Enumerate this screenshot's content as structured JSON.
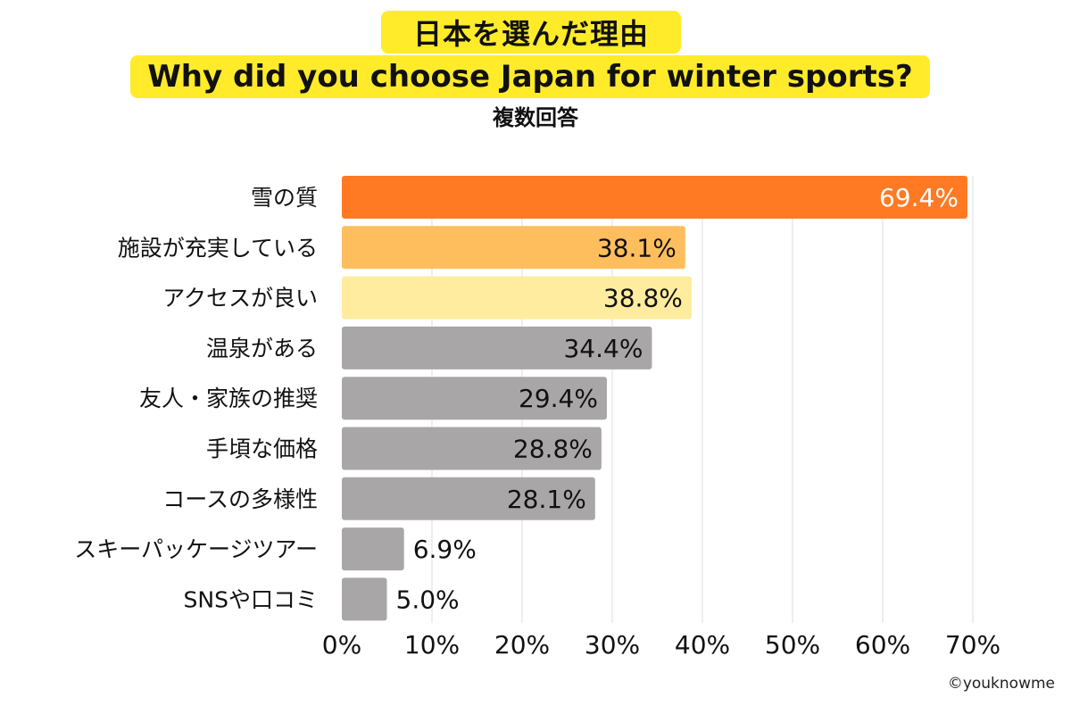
{
  "title": {
    "jp": "日本を選んだ理由",
    "en": "Why did you choose Japan for winter sports?",
    "highlight_color": "#ffeb2a"
  },
  "subtitle": "複数回答",
  "credit": "©youknowme",
  "chart_data": {
    "type": "bar",
    "orientation": "horizontal",
    "categories": [
      "雪の質",
      "施設が充実している",
      "アクセスが良い",
      "温泉がある",
      "友人・家族の推奨",
      "手頃な価格",
      "コースの多様性",
      "スキーパッケージツアー",
      "SNSや口コミ"
    ],
    "values": [
      69.4,
      38.1,
      38.8,
      34.4,
      29.4,
      28.8,
      28.1,
      6.9,
      5.0
    ],
    "value_labels": [
      "69.4%",
      "38.1%",
      "38.8%",
      "34.4%",
      "29.4%",
      "28.8%",
      "28.1%",
      "6.9%",
      "5.0%"
    ],
    "colors": [
      "#ff7a22",
      "#ffbe5e",
      "#ffec9e",
      "#a8a6a7",
      "#a8a6a7",
      "#a8a6a7",
      "#a8a6a7",
      "#a8a6a7",
      "#a8a6a7"
    ],
    "label_colors": [
      "#ffffff",
      "#111111",
      "#111111",
      "#111111",
      "#111111",
      "#111111",
      "#111111",
      "#111111",
      "#111111"
    ],
    "xlim": [
      0,
      70
    ],
    "xticks": [
      0,
      10,
      20,
      30,
      40,
      50,
      60,
      70
    ],
    "xtick_labels": [
      "0%",
      "10%",
      "20%",
      "30%",
      "40%",
      "50%",
      "60%",
      "70%"
    ],
    "grid": true
  }
}
